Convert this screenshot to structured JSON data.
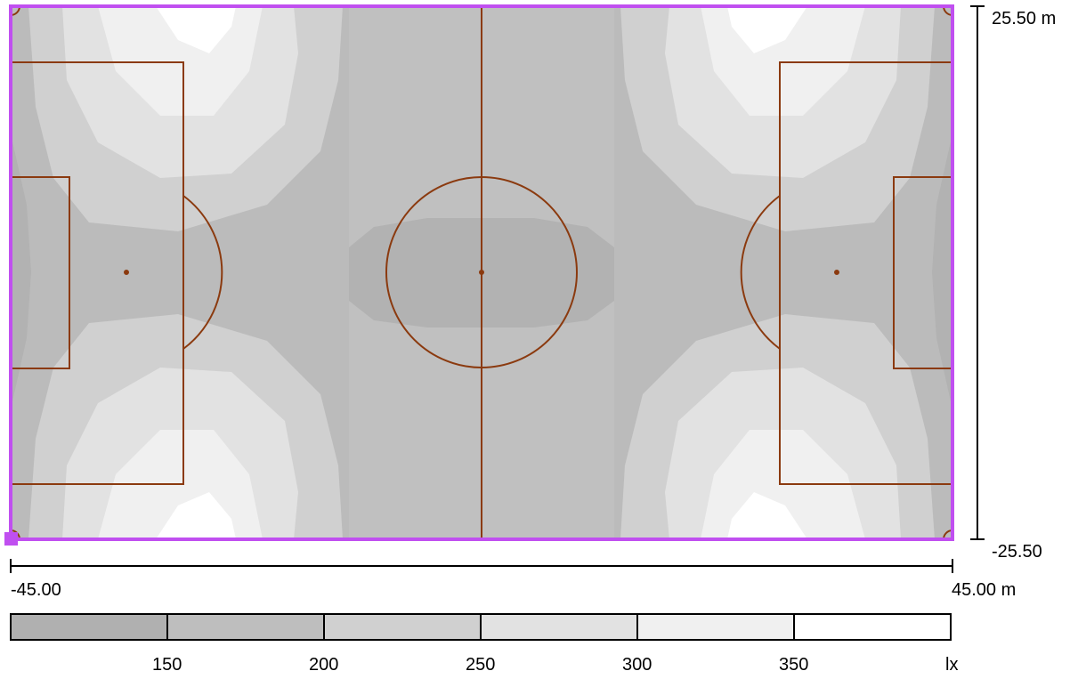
{
  "field": {
    "boundary_color": "#c04ff0",
    "line_color": "#8b3a0f"
  },
  "dimensions": {
    "y_top_label": "25.50 m",
    "y_bottom_label": "-25.50",
    "x_left_label": "-45.00",
    "x_right_label": "45.00 m"
  },
  "legend": {
    "unit": "lx",
    "ticks": [
      "150",
      "200",
      "250",
      "300",
      "350"
    ],
    "bands": [
      {
        "color": "#b0b0b0"
      },
      {
        "color": "#bebebe"
      },
      {
        "color": "#d0d0d0"
      },
      {
        "color": "#e2e2e2"
      },
      {
        "color": "#f0f0f0"
      },
      {
        "color": "#ffffff"
      }
    ]
  },
  "contour_colors": {
    "base": "#c0c0c0",
    "darker": "#b2b2b2",
    "mid": "#d0d0d0",
    "light": "#e2e2e2",
    "lighter": "#f0f0f0",
    "white": "#ffffff",
    "side": "#bbbbbb"
  }
}
